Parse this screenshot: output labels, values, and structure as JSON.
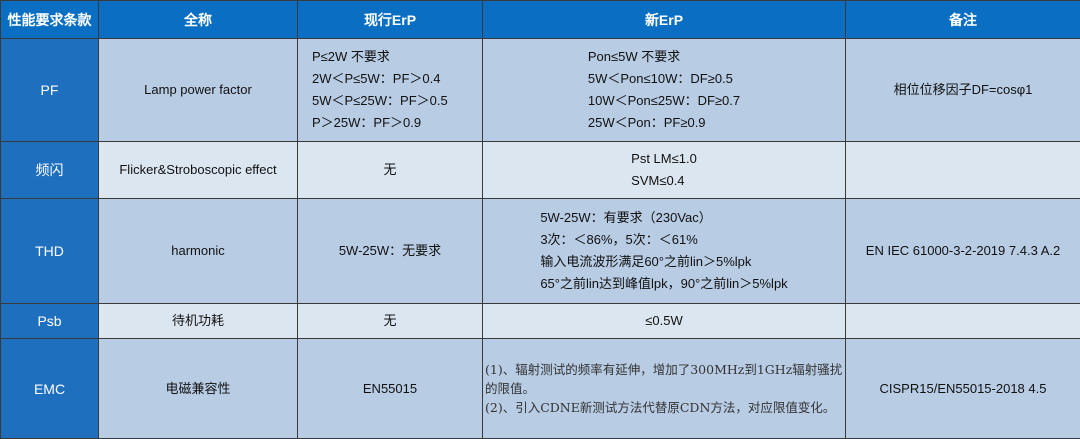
{
  "headers": [
    "性能要求条款",
    "全称",
    "现行ErP",
    "新ErP",
    "备注"
  ],
  "rows": [
    {
      "key": "PF",
      "name": "Lamp power factor",
      "current": [
        "P≤2W 不要求",
        "2W＜P≤5W：PF＞0.4",
        "5W＜P≤25W：PF＞0.5",
        "P＞25W：PF＞0.9"
      ],
      "new": [
        "Pon≤5W 不要求",
        "5W＜Pon≤10W：DF≥0.5",
        "10W＜Pon≤25W：DF≥0.7",
        "25W＜Pon：PF≥0.9"
      ],
      "note": "相位位移因子DF=cosφ1"
    },
    {
      "key": "频闪",
      "name": "Flicker&Stroboscopic effect",
      "current": [
        "无"
      ],
      "new": [
        "Pst LM≤1.0",
        "SVM≤0.4"
      ],
      "note": ""
    },
    {
      "key": "THD",
      "name": "harmonic",
      "current": [
        "5W-25W：无要求"
      ],
      "new": [
        "5W-25W：有要求（230Vac）",
        "3次：＜86%，5次：＜61%",
        "输入电流波形满足60°之前lin＞5%lpk",
        "65°之前lin达到峰值lpk，90°之前lin＞5%lpk"
      ],
      "note": "EN IEC 61000-3-2-2019 7.4.3 A.2"
    },
    {
      "key": "Psb",
      "name": "待机功耗",
      "current": [
        "无"
      ],
      "new": [
        "≤0.5W"
      ],
      "note": ""
    },
    {
      "key": "EMC",
      "name": "电磁兼容性",
      "current": [
        "EN55015"
      ],
      "new": [
        "(1)、辐射测试的频率有延伸，增加了300MHz到1GHz辐射骚扰的限值。",
        "(2)、引入CDNE新测试方法代替原CDN方法，对应限值变化。"
      ],
      "note": "CISPR15/EN55015-2018 4.5"
    }
  ]
}
